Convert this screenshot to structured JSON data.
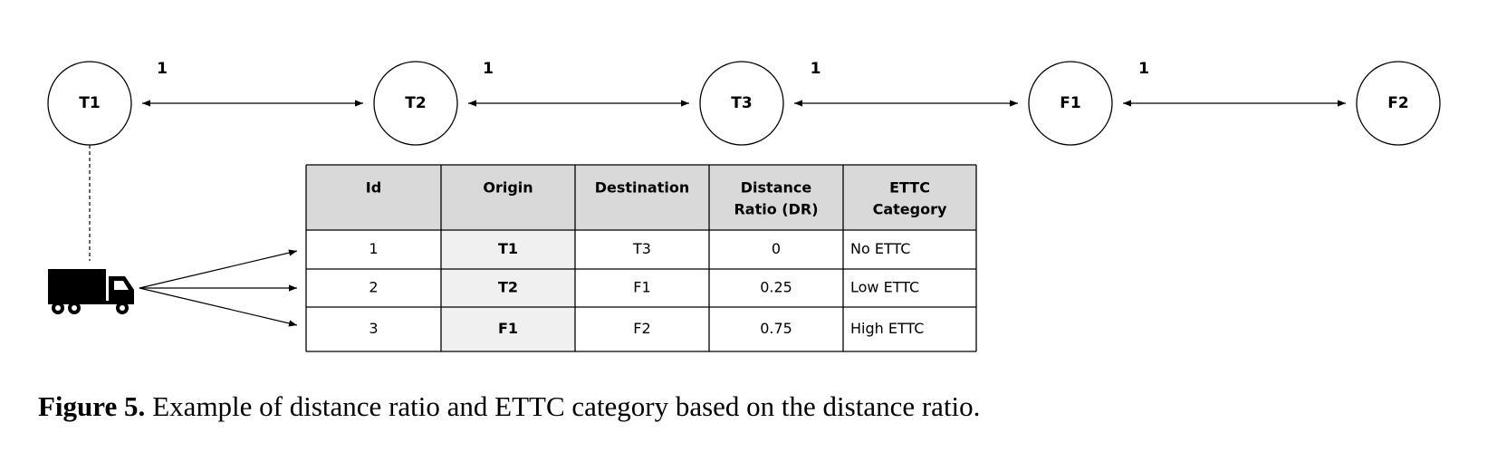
{
  "nodes": [
    {
      "label": "T1"
    },
    {
      "label": "T2"
    },
    {
      "label": "T3"
    },
    {
      "label": "F1"
    },
    {
      "label": "F2"
    }
  ],
  "edges": [
    {
      "label": "1"
    },
    {
      "label": "1"
    },
    {
      "label": "1"
    },
    {
      "label": "1"
    }
  ],
  "table": {
    "header": [
      [
        "Id"
      ],
      [
        "Origin"
      ],
      [
        "Destination"
      ],
      [
        "Distance",
        "Ratio (DR)"
      ],
      [
        "ETTC",
        "Category"
      ]
    ],
    "rows": [
      [
        "1",
        "T1",
        "T3",
        "0",
        "No ETTC"
      ],
      [
        "2",
        "T2",
        "F1",
        "0.25",
        "Low ETTC"
      ],
      [
        "3",
        "F1",
        "F2",
        "0.75",
        "High ETTC"
      ]
    ]
  },
  "caption": {
    "label": "Figure 5.",
    "text": "Example of distance ratio and ETTC category based on the distance ratio."
  }
}
